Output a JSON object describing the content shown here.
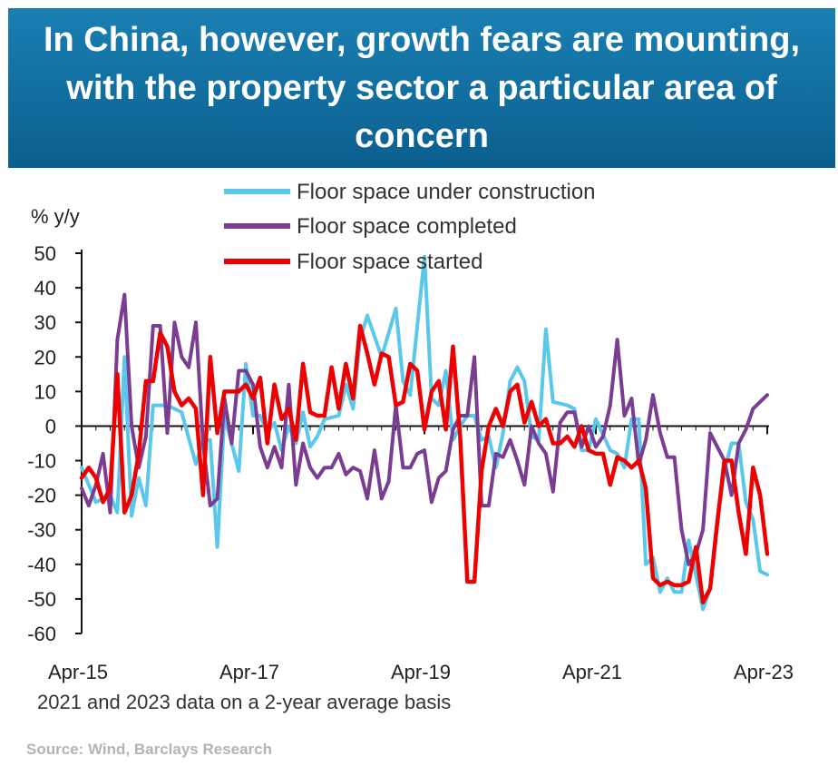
{
  "banner": {
    "title": "In China, however, growth fears are mounting, with the property sector a particular area of concern"
  },
  "source": "Source: Wind, Barclays Research",
  "chart_data": {
    "type": "line",
    "ylabel": "% y/y",
    "ylim": [
      -60,
      50
    ],
    "yticks": [
      50,
      40,
      30,
      20,
      10,
      0,
      -10,
      -20,
      -30,
      -40,
      -50,
      -60
    ],
    "xlim": [
      0,
      96
    ],
    "xticks": [
      {
        "label": "Apr-15",
        "x": 0
      },
      {
        "label": "Apr-17",
        "x": 24
      },
      {
        "label": "Apr-19",
        "x": 48
      },
      {
        "label": "Apr-21",
        "x": 72
      },
      {
        "label": "Apr-23",
        "x": 96
      }
    ],
    "footnote": "2021 and 2023 data on a 2-year average basis",
    "legend_position": "top",
    "series": [
      {
        "name": "Floor space under construction",
        "color": "#5ac8ea",
        "x": [
          0,
          2,
          4,
          5,
          6,
          7,
          8,
          9,
          10,
          12,
          14,
          16,
          17,
          18,
          19,
          20,
          22,
          23,
          24,
          25,
          26,
          27,
          28,
          29,
          30,
          31,
          32,
          33,
          34,
          36,
          37,
          38,
          39,
          40,
          42,
          44,
          45,
          46,
          48,
          49,
          50,
          51,
          52,
          53,
          54,
          55,
          56,
          57,
          58,
          59,
          60,
          61,
          62,
          63,
          64,
          65,
          66,
          68,
          69,
          70,
          71,
          72,
          74,
          75,
          76,
          77,
          78,
          79,
          80,
          81,
          82,
          83,
          84,
          85,
          86,
          87,
          88,
          89,
          90,
          91,
          92,
          93,
          94,
          95,
          96
        ],
        "values": [
          -12,
          -22,
          -20,
          -25,
          20,
          -26,
          -15,
          -23,
          6,
          6,
          4,
          -11,
          -4,
          -4,
          -35,
          3,
          -13,
          18,
          3,
          3,
          -2,
          1,
          -7,
          0,
          -5,
          4,
          -6,
          -3,
          2,
          3,
          12,
          5,
          25,
          32,
          20,
          34,
          13,
          9,
          49,
          8,
          6,
          16,
          -4,
          0,
          3,
          3,
          -4,
          -3,
          -12,
          -2,
          13,
          17,
          13,
          -3,
          -4,
          28,
          7,
          6,
          5,
          -7,
          -7,
          2,
          -7,
          -8,
          -12,
          2,
          2,
          -40,
          -38,
          -48,
          -44,
          -48,
          -48,
          -33,
          -43,
          -53,
          -47,
          -27,
          -13,
          -5,
          -5,
          -22,
          -27,
          -42,
          -43
        ]
      },
      {
        "name": "Floor space completed",
        "color": "#7a3d92",
        "x": [
          0,
          1,
          2,
          3,
          4,
          5,
          6,
          7,
          8,
          9,
          10,
          11,
          12,
          13,
          14,
          15,
          16,
          17,
          18,
          19,
          20,
          21,
          22,
          23,
          24,
          25,
          26,
          27,
          28,
          29,
          30,
          31,
          32,
          33,
          34,
          35,
          36,
          37,
          38,
          39,
          40,
          41,
          42,
          43,
          44,
          45,
          46,
          47,
          48,
          49,
          50,
          51,
          52,
          53,
          54,
          55,
          56,
          57,
          58,
          59,
          60,
          61,
          62,
          63,
          64,
          65,
          66,
          67,
          68,
          69,
          70,
          71,
          72,
          73,
          74,
          75,
          76,
          77,
          78,
          79,
          80,
          81,
          82,
          83,
          84,
          85,
          86,
          87,
          88,
          89,
          90,
          91,
          92,
          93,
          94,
          95,
          96
        ],
        "values": [
          -18,
          -23,
          -17,
          -8,
          -25,
          25,
          38,
          0,
          -12,
          -3,
          29,
          29,
          -2,
          30,
          20,
          17,
          30,
          -5,
          -23,
          -21,
          8,
          -5,
          16,
          16,
          12,
          -6,
          -12,
          -6,
          -12,
          12,
          -17,
          -5,
          -12,
          -15,
          -12,
          -12,
          -8,
          -14,
          -12,
          -13,
          -21,
          -7,
          -21,
          -16,
          6,
          -12,
          -12,
          -8,
          -7,
          -22,
          -15,
          -13,
          -1,
          3,
          3,
          20,
          -23,
          -23,
          -8,
          -9,
          -4,
          -10,
          -17,
          0,
          -5,
          -8,
          -19,
          1,
          4,
          4,
          -6,
          0,
          -6,
          -3,
          6,
          25,
          3,
          8,
          -11,
          -4,
          9,
          -2,
          -9,
          -9,
          -30,
          -40,
          -37,
          -30,
          -2,
          -6,
          -10,
          -20,
          -5,
          -1,
          5,
          7,
          9
        ]
      },
      {
        "name": "Floor space started",
        "color": "#ee0000",
        "x": [
          0,
          1,
          2,
          3,
          4,
          5,
          6,
          7,
          8,
          9,
          10,
          11,
          12,
          13,
          14,
          15,
          16,
          17,
          18,
          19,
          20,
          21,
          22,
          23,
          24,
          25,
          26,
          27,
          28,
          29,
          30,
          31,
          32,
          33,
          34,
          35,
          36,
          37,
          38,
          39,
          40,
          41,
          42,
          43,
          44,
          45,
          46,
          47,
          48,
          49,
          50,
          51,
          52,
          53,
          54,
          55,
          56,
          57,
          58,
          59,
          60,
          61,
          62,
          63,
          64,
          65,
          66,
          67,
          68,
          69,
          70,
          71,
          72,
          73,
          74,
          75,
          76,
          77,
          78,
          79,
          80,
          81,
          82,
          83,
          84,
          85,
          86,
          87,
          88,
          89,
          90,
          91,
          92,
          93,
          94,
          95,
          96
        ],
        "values": [
          -15,
          -12,
          -15,
          -22,
          -18,
          15,
          -25,
          -20,
          -8,
          13,
          13,
          27,
          23,
          10,
          6,
          8,
          5,
          -20,
          20,
          -2,
          10,
          10,
          10,
          12,
          8,
          14,
          -5,
          12,
          2,
          5,
          -4,
          18,
          4,
          3,
          3,
          17,
          5,
          18,
          8,
          29,
          21,
          12,
          21,
          20,
          6,
          7,
          18,
          16,
          -1,
          10,
          13,
          -1,
          23,
          -3,
          -45,
          -45,
          -13,
          0,
          5,
          0,
          10,
          12,
          1,
          7,
          0,
          2,
          -5,
          -5,
          -3,
          -6,
          0,
          -7,
          -8,
          -8,
          -17,
          -9,
          -10,
          -12,
          -10,
          -18,
          -44,
          -46,
          -45,
          -46,
          -46,
          -45,
          -35,
          -51,
          -47,
          -28,
          -10,
          -10,
          -25,
          -37,
          -12,
          -20,
          -37
        ]
      }
    ]
  }
}
